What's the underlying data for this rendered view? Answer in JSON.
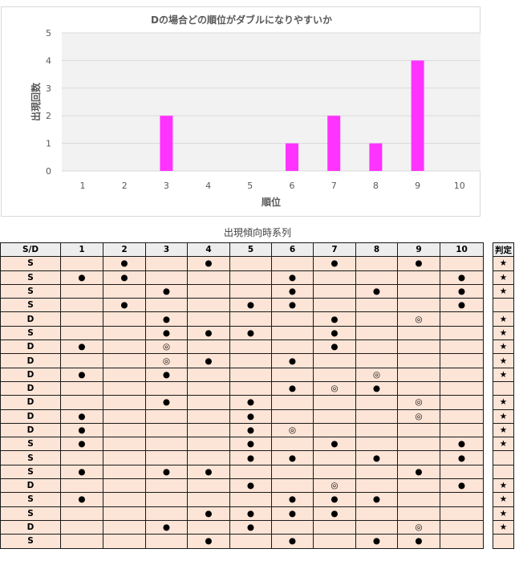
{
  "chart_data": {
    "type": "bar",
    "title": "Dの場合どの順位がダブルになりやすいか",
    "xlabel": "順位",
    "ylabel": "出現回数",
    "categories": [
      "1",
      "2",
      "3",
      "4",
      "5",
      "6",
      "7",
      "8",
      "9",
      "10"
    ],
    "values": [
      0,
      0,
      2,
      0,
      0,
      1,
      2,
      1,
      4,
      0
    ],
    "ylim": [
      0,
      5
    ],
    "yticks": [
      "0",
      "1",
      "2",
      "3",
      "4",
      "5"
    ],
    "bar_color": "#ff33ff",
    "plot_background": "#f2f2f2",
    "grid": true
  },
  "table": {
    "caption": "出現傾向時系列",
    "header": [
      "S/D",
      "1",
      "2",
      "3",
      "4",
      "5",
      "6",
      "7",
      "8",
      "9",
      "10"
    ],
    "judge_header": "判定",
    "rows": [
      {
        "sd": "S",
        "cells": [
          "",
          "●",
          "",
          "●",
          "",
          "",
          "●",
          "",
          "●",
          ""
        ],
        "judge": "★"
      },
      {
        "sd": "S",
        "cells": [
          "●",
          "●",
          "",
          "",
          "",
          "●",
          "",
          "",
          "",
          "●"
        ],
        "judge": "★"
      },
      {
        "sd": "S",
        "cells": [
          "",
          "",
          "●",
          "",
          "",
          "●",
          "",
          "●",
          "",
          "●"
        ],
        "judge": "★"
      },
      {
        "sd": "S",
        "cells": [
          "",
          "●",
          "",
          "",
          "●",
          "●",
          "",
          "",
          "",
          "●"
        ],
        "judge": ""
      },
      {
        "sd": "D",
        "cells": [
          "",
          "",
          "●",
          "",
          "",
          "",
          "●",
          "",
          "◎",
          ""
        ],
        "judge": "★"
      },
      {
        "sd": "S",
        "cells": [
          "",
          "",
          "●",
          "●",
          "●",
          "",
          "●",
          "",
          "",
          ""
        ],
        "judge": "★"
      },
      {
        "sd": "D",
        "cells": [
          "●",
          "",
          "◎",
          "",
          "",
          "",
          "●",
          "",
          "",
          ""
        ],
        "judge": "★"
      },
      {
        "sd": "D",
        "cells": [
          "",
          "",
          "◎",
          "●",
          "",
          "●",
          "",
          "",
          "",
          ""
        ],
        "judge": "★"
      },
      {
        "sd": "D",
        "cells": [
          "●",
          "",
          "●",
          "",
          "",
          "",
          "",
          "◎",
          "",
          ""
        ],
        "judge": "★"
      },
      {
        "sd": "D",
        "cells": [
          "",
          "",
          "",
          "",
          "",
          "●",
          "◎",
          "●",
          "",
          ""
        ],
        "judge": ""
      },
      {
        "sd": "D",
        "cells": [
          "",
          "",
          "●",
          "",
          "●",
          "",
          "",
          "",
          "◎",
          ""
        ],
        "judge": "★"
      },
      {
        "sd": "D",
        "cells": [
          "●",
          "",
          "",
          "",
          "●",
          "",
          "",
          "",
          "◎",
          ""
        ],
        "judge": "★"
      },
      {
        "sd": "D",
        "cells": [
          "●",
          "",
          "",
          "",
          "●",
          "◎",
          "",
          "",
          "",
          ""
        ],
        "judge": "★"
      },
      {
        "sd": "S",
        "cells": [
          "●",
          "",
          "",
          "",
          "●",
          "",
          "●",
          "",
          "",
          "●"
        ],
        "judge": "★"
      },
      {
        "sd": "S",
        "cells": [
          "",
          "",
          "",
          "",
          "●",
          "●",
          "",
          "●",
          "",
          "●"
        ],
        "judge": ""
      },
      {
        "sd": "S",
        "cells": [
          "●",
          "",
          "●",
          "●",
          "",
          "",
          "",
          "",
          "●",
          ""
        ],
        "judge": ""
      },
      {
        "sd": "D",
        "cells": [
          "",
          "",
          "",
          "",
          "●",
          "",
          "◎",
          "",
          "",
          "●"
        ],
        "judge": "★"
      },
      {
        "sd": "S",
        "cells": [
          "●",
          "",
          "",
          "",
          "",
          "●",
          "●",
          "●",
          "",
          ""
        ],
        "judge": "★"
      },
      {
        "sd": "S",
        "cells": [
          "",
          "",
          "",
          "●",
          "●",
          "●",
          "●",
          "",
          "",
          ""
        ],
        "judge": "★"
      },
      {
        "sd": "D",
        "cells": [
          "",
          "",
          "●",
          "",
          "●",
          "",
          "",
          "",
          "◎",
          ""
        ],
        "judge": "★"
      },
      {
        "sd": "S",
        "cells": [
          "",
          "",
          "",
          "●",
          "",
          "●",
          "",
          "●",
          "●",
          ""
        ],
        "judge": ""
      }
    ]
  }
}
